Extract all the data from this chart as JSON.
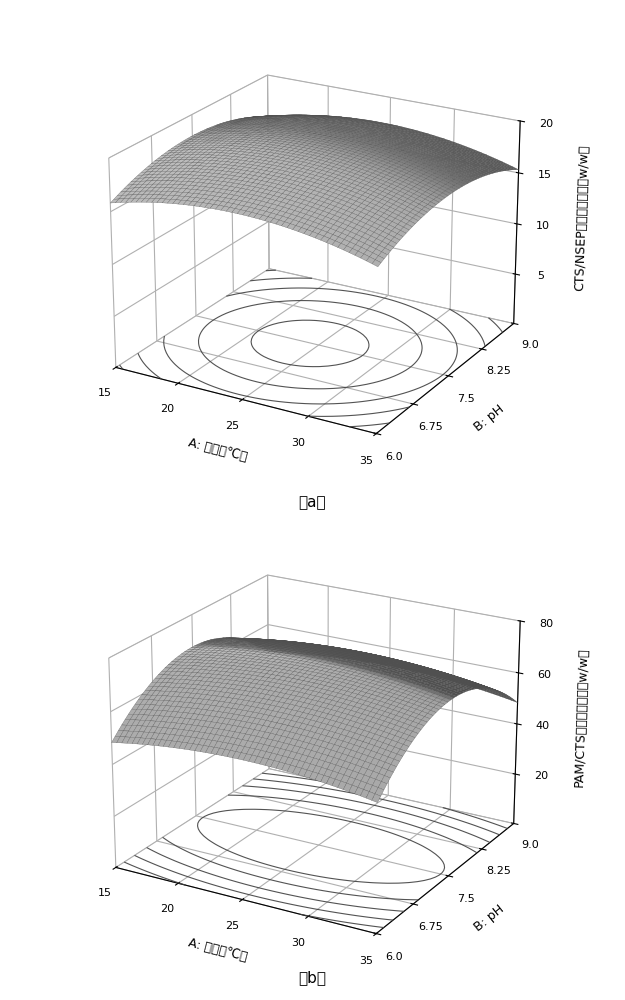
{
  "temp_range": [
    15,
    35
  ],
  "ph_range": [
    6.0,
    9.0
  ],
  "temp_ticks": [
    15,
    20,
    25,
    30,
    35
  ],
  "ph_ticks": [
    6.0,
    6.75,
    7.5,
    8.25,
    9.0
  ],
  "plot_a": {
    "zlabel": "CTS/NSEP最佳质量比例（w/w）",
    "zlim": [
      0,
      20
    ],
    "zticks": [
      5,
      10,
      15,
      20
    ],
    "xlabel": "A: 温度（℃）",
    "ylabel": "B: pH",
    "subtitle": "（a）",
    "a0": 19.5,
    "a_T": -0.025,
    "a_T2": -0.018,
    "a_P": 0.0,
    "a_P2": -0.95,
    "a_TP": 0.0
  },
  "plot_b": {
    "zlabel": "PAM/CTS最佳质量比例（w/w）",
    "zlim": [
      0,
      80
    ],
    "zticks": [
      20,
      40,
      60,
      80
    ],
    "xlabel": "A: 温度（℃）",
    "ylabel": "B: pH",
    "subtitle": "（b）",
    "a0": 72.0,
    "a_T": 0.0,
    "a_T2": -0.045,
    "a_P": 0.0,
    "a_P2": -8.5,
    "a_TP": 0.0
  },
  "elev_a": 22,
  "azim_a": -60,
  "elev_b": 22,
  "azim_b": -60,
  "n_grid": 50,
  "figure_bg": "#ffffff",
  "pane_color_a": [
    1.0,
    1.0,
    1.0,
    1.0
  ],
  "pane_color_b": [
    1.0,
    1.0,
    1.0,
    1.0
  ],
  "surface_color_a": "#c8c8c8",
  "surface_color_b": "#c0c0c0",
  "edge_color": "#505050",
  "font_size_label": 9,
  "font_size_tick": 8,
  "font_size_subtitle": 11,
  "contour_levels": 5,
  "contour_color": "#404040",
  "contour_lw": 0.8
}
